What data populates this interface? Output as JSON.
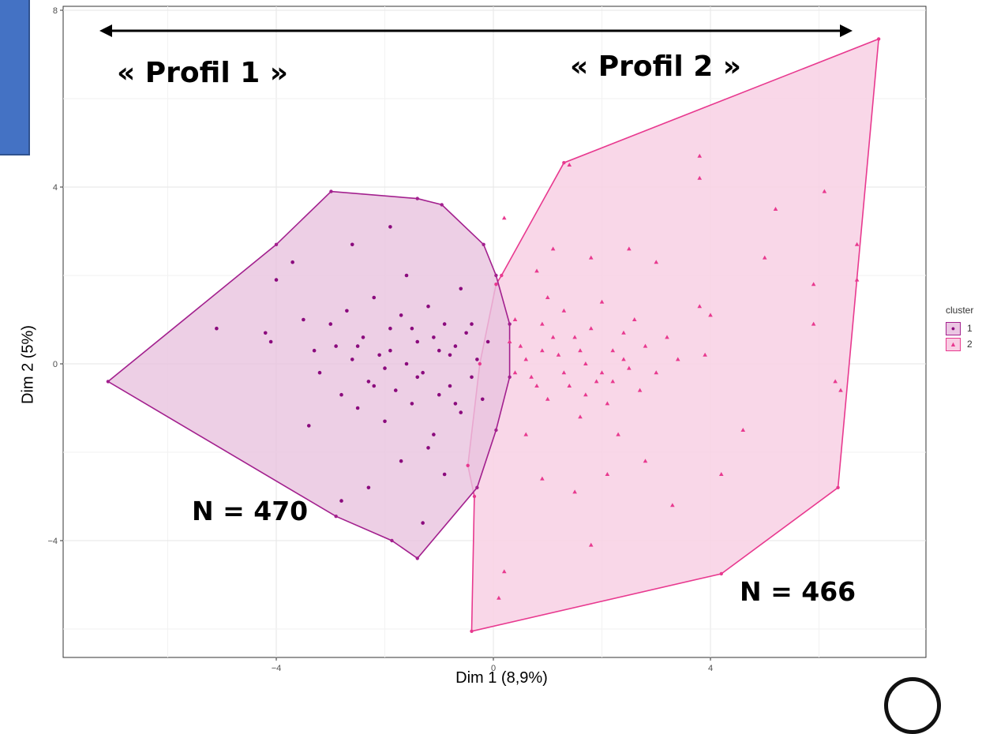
{
  "annotations": {
    "profil1": "« Profil 1 »",
    "profil2": "« Profil 2 »",
    "n1": "N = 470",
    "n2": "N = 466"
  },
  "colors": {
    "cluster1_point": "#8b0a7d",
    "cluster1_hull_fill": "#e8c3df",
    "cluster1_hull_line": "#a3208e",
    "cluster2_point": "#e8398f",
    "cluster2_hull_fill": "#f8d0e4",
    "cluster2_hull_line": "#e8398f",
    "sidebar_box": "#4472c4"
  },
  "chart_data": {
    "type": "scatter",
    "xlabel": "Dim 1 (8,9%)",
    "ylabel": "Dim 2 (5%)",
    "xlim": [
      -8,
      8
    ],
    "ylim": [
      -6.6,
      8
    ],
    "x_ticks": [
      -4,
      0,
      4
    ],
    "y_ticks": [
      -4,
      0,
      4,
      8
    ],
    "grid": true,
    "legend": {
      "title": "cluster",
      "position": "right",
      "entries": [
        "1",
        "2"
      ]
    },
    "series": [
      {
        "name": "1",
        "marker": "circle",
        "count": 470,
        "hull": [
          [
            -7.1,
            -0.4
          ],
          [
            -4.0,
            2.7
          ],
          [
            -2.99,
            3.9
          ],
          [
            -1.4,
            3.74
          ],
          [
            -0.95,
            3.6
          ],
          [
            -0.18,
            2.7
          ],
          [
            0.05,
            2.0
          ],
          [
            0.3,
            0.9
          ],
          [
            0.3,
            -0.3
          ],
          [
            0.05,
            -1.5
          ],
          [
            -0.3,
            -2.8
          ],
          [
            -1.4,
            -4.4
          ],
          [
            -1.87,
            -4.0
          ],
          [
            -2.9,
            -3.45
          ]
        ],
        "points": [
          [
            -5.1,
            0.8
          ],
          [
            -4.2,
            0.7
          ],
          [
            -4.1,
            0.5
          ],
          [
            -3.5,
            1.0
          ],
          [
            -3.3,
            0.3
          ],
          [
            -3.2,
            -0.2
          ],
          [
            -3.0,
            0.9
          ],
          [
            -2.9,
            0.4
          ],
          [
            -2.8,
            -0.7
          ],
          [
            -2.7,
            1.2
          ],
          [
            -2.6,
            0.1
          ],
          [
            -2.5,
            -1.0
          ],
          [
            -2.4,
            0.6
          ],
          [
            -2.3,
            -0.4
          ],
          [
            -2.2,
            1.5
          ],
          [
            -2.1,
            0.2
          ],
          [
            -2.0,
            -1.3
          ],
          [
            -1.9,
            0.8
          ],
          [
            -1.8,
            -0.6
          ],
          [
            -1.7,
            1.1
          ],
          [
            -1.6,
            0.0
          ],
          [
            -1.5,
            -0.9
          ],
          [
            -1.4,
            0.5
          ],
          [
            -1.3,
            -0.2
          ],
          [
            -1.2,
            1.3
          ],
          [
            -1.1,
            -1.6
          ],
          [
            -1.0,
            0.3
          ],
          [
            -0.9,
            0.9
          ],
          [
            -0.8,
            -0.5
          ],
          [
            -0.7,
            0.4
          ],
          [
            -0.6,
            -1.1
          ],
          [
            -0.5,
            0.7
          ],
          [
            -0.4,
            -0.3
          ],
          [
            -0.3,
            0.1
          ],
          [
            -0.2,
            -0.8
          ],
          [
            -0.1,
            0.5
          ],
          [
            -3.7,
            2.3
          ],
          [
            -2.6,
            2.7
          ],
          [
            -1.9,
            3.1
          ],
          [
            -2.3,
            -2.8
          ],
          [
            -1.7,
            -2.2
          ],
          [
            -0.9,
            -2.5
          ],
          [
            -2.8,
            -3.1
          ],
          [
            -1.3,
            -3.6
          ],
          [
            -4.0,
            1.9
          ],
          [
            -3.4,
            -1.4
          ],
          [
            -1.6,
            2.0
          ],
          [
            -0.6,
            1.7
          ],
          [
            -1.2,
            -1.9
          ],
          [
            -2.0,
            -0.1
          ],
          [
            -1.4,
            -0.3
          ],
          [
            -0.8,
            0.2
          ],
          [
            -1.1,
            0.6
          ],
          [
            -1.9,
            0.3
          ],
          [
            -2.5,
            0.4
          ],
          [
            -0.4,
            0.9
          ],
          [
            -0.7,
            -0.9
          ],
          [
            -1.5,
            0.8
          ],
          [
            -1.0,
            -0.7
          ],
          [
            -2.2,
            -0.5
          ]
        ]
      },
      {
        "name": "2",
        "marker": "triangle",
        "count": 466,
        "hull": [
          [
            -0.4,
            -6.05
          ],
          [
            4.2,
            -4.75
          ],
          [
            6.35,
            -2.8
          ],
          [
            7.1,
            7.35
          ],
          [
            1.3,
            4.55
          ],
          [
            0.15,
            2.0
          ],
          [
            0.05,
            1.8
          ],
          [
            -0.25,
            0.0
          ],
          [
            -0.47,
            -2.3
          ],
          [
            -0.35,
            -3.0
          ]
        ],
        "points": [
          [
            0.5,
            0.4
          ],
          [
            0.7,
            -0.3
          ],
          [
            0.9,
            0.9
          ],
          [
            1.0,
            -0.8
          ],
          [
            1.2,
            0.2
          ],
          [
            1.3,
            1.2
          ],
          [
            1.4,
            -0.5
          ],
          [
            1.5,
            0.6
          ],
          [
            1.6,
            -1.2
          ],
          [
            1.7,
            0.0
          ],
          [
            1.8,
            0.8
          ],
          [
            1.9,
            -0.4
          ],
          [
            2.0,
            1.4
          ],
          [
            2.1,
            -0.9
          ],
          [
            2.2,
            0.3
          ],
          [
            2.3,
            -1.6
          ],
          [
            2.4,
            0.7
          ],
          [
            2.5,
            -0.1
          ],
          [
            2.6,
            1.0
          ],
          [
            2.7,
            -0.6
          ],
          [
            2.8,
            0.4
          ],
          [
            3.0,
            -0.2
          ],
          [
            3.2,
            0.6
          ],
          [
            3.4,
            0.1
          ],
          [
            0.6,
            -1.6
          ],
          [
            0.8,
            2.1
          ],
          [
            1.1,
            2.6
          ],
          [
            1.8,
            2.4
          ],
          [
            2.5,
            2.6
          ],
          [
            3.0,
            2.3
          ],
          [
            0.9,
            -2.6
          ],
          [
            1.5,
            -2.9
          ],
          [
            2.1,
            -2.5
          ],
          [
            2.8,
            -2.2
          ],
          [
            0.2,
            -4.7
          ],
          [
            0.1,
            -5.3
          ],
          [
            1.8,
            -4.1
          ],
          [
            3.8,
            4.7
          ],
          [
            3.8,
            4.2
          ],
          [
            5.0,
            2.4
          ],
          [
            5.9,
            0.9
          ],
          [
            5.9,
            1.8
          ],
          [
            6.3,
            -0.4
          ],
          [
            6.4,
            -0.6
          ],
          [
            4.2,
            -2.5
          ],
          [
            3.3,
            -3.2
          ],
          [
            4.6,
            -1.5
          ],
          [
            5.2,
            3.5
          ],
          [
            6.1,
            3.9
          ],
          [
            6.7,
            2.7
          ],
          [
            6.7,
            1.9
          ],
          [
            3.8,
            1.3
          ],
          [
            3.9,
            0.2
          ],
          [
            4.0,
            1.1
          ],
          [
            1.4,
            4.5
          ],
          [
            0.2,
            3.3
          ],
          [
            0.4,
            -0.2
          ],
          [
            0.3,
            0.5
          ],
          [
            0.6,
            0.1
          ],
          [
            1.3,
            -0.2
          ],
          [
            1.6,
            0.3
          ],
          [
            2.0,
            -0.2
          ],
          [
            0.8,
            -0.5
          ],
          [
            1.1,
            0.6
          ],
          [
            0.9,
            0.3
          ],
          [
            1.7,
            -0.7
          ],
          [
            2.2,
            -0.4
          ],
          [
            2.4,
            0.1
          ],
          [
            1.0,
            1.5
          ],
          [
            0.4,
            1.0
          ]
        ]
      }
    ]
  }
}
